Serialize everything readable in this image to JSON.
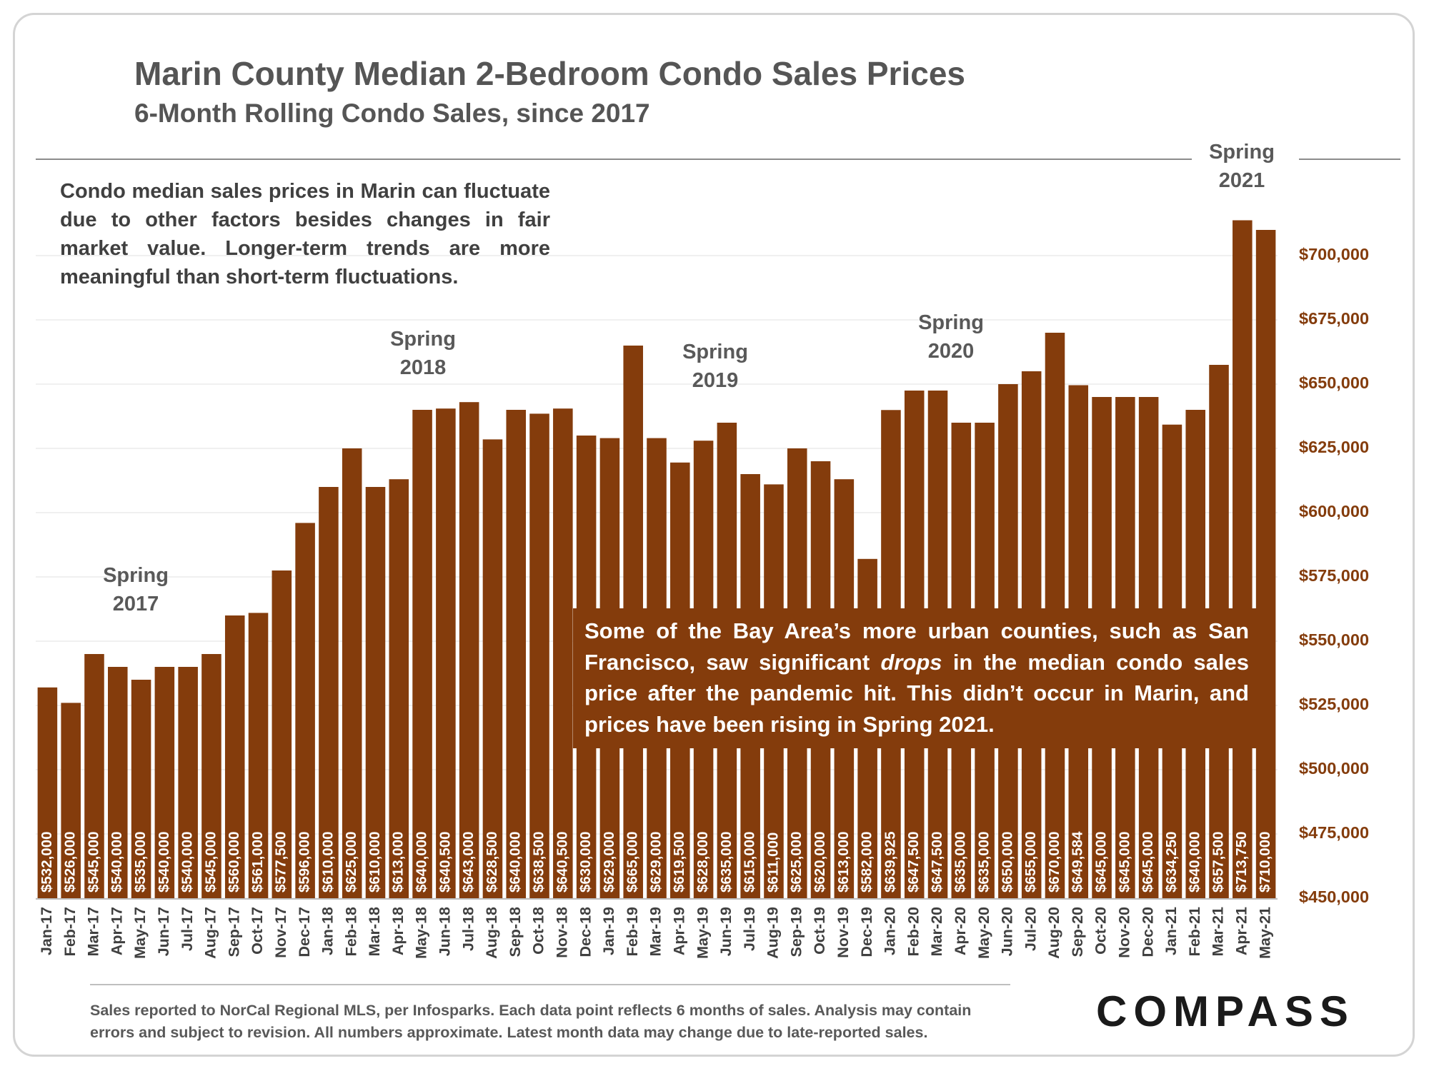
{
  "header": {
    "title": "Marin County Median 2-Bedroom Condo Sales Prices",
    "subtitle": "6-Month Rolling Condo Sales, since 2017"
  },
  "note": "Condo median sales prices in Marin can fluctuate due to other factors besides changes in fair market value. Longer-term trends are more meaningful than short-term fluctuations.",
  "callout": {
    "part1": "Some of the Bay Area’s more urban counties, such as San Francisco, saw significant ",
    "emphasis": "drops",
    "part2": " in the median condo sales price after the pandemic hit. This didn’t occur in Marin, and prices have been rising in Spring 2021."
  },
  "footer": {
    "line1": "Sales reported to NorCal Regional MLS, per Infosparks. Each data point reflects 6 months of sales. Analysis may contain",
    "line2": "errors and subject to revision. All numbers approximate. Latest month data may change due to late-reported sales."
  },
  "logo": "COMPASS",
  "colors": {
    "bar": "#843C0C",
    "axis_text": "#843C0C",
    "title": "#555555"
  },
  "chart_data": {
    "type": "bar",
    "ylim": [
      450000,
      710000
    ],
    "yticks": [
      450000,
      475000,
      500000,
      525000,
      550000,
      575000,
      600000,
      625000,
      650000,
      675000,
      700000
    ],
    "ytick_labels": [
      "$450,000",
      "$475,000",
      "$500,000",
      "$525,000",
      "$550,000",
      "$575,000",
      "$600,000",
      "$625,000",
      "$650,000",
      "$675,000",
      "$700,000"
    ],
    "categories": [
      "Jan-17",
      "Feb-17",
      "Mar-17",
      "Apr-17",
      "May-17",
      "Jun-17",
      "Jul-17",
      "Aug-17",
      "Sep-17",
      "Oct-17",
      "Nov-17",
      "Dec-17",
      "Jan-18",
      "Feb-18",
      "Mar-18",
      "Apr-18",
      "May-18",
      "Jun-18",
      "Jul-18",
      "Aug-18",
      "Sep-18",
      "Oct-18",
      "Nov-18",
      "Dec-18",
      "Jan-19",
      "Feb-19",
      "Mar-19",
      "Apr-19",
      "May-19",
      "Jun-19",
      "Jul-19",
      "Aug-19",
      "Sep-19",
      "Oct-19",
      "Nov-19",
      "Dec-19",
      "Jan-20",
      "Feb-20",
      "Mar-20",
      "Apr-20",
      "May-20",
      "Jun-20",
      "Jul-20",
      "Aug-20",
      "Sep-20",
      "Oct-20",
      "Nov-20",
      "Dec-20",
      "Jan-21",
      "Feb-21",
      "Mar-21",
      "Apr-21",
      "May-21"
    ],
    "values": [
      532000,
      526000,
      545000,
      540000,
      535000,
      540000,
      540000,
      545000,
      560000,
      561000,
      577500,
      596000,
      610000,
      625000,
      610000,
      613000,
      640000,
      640500,
      643000,
      628500,
      640000,
      638500,
      640500,
      630000,
      629000,
      665000,
      629000,
      619500,
      628000,
      635000,
      615000,
      611000,
      625000,
      620000,
      613000,
      582000,
      639925,
      647500,
      647500,
      635000,
      635000,
      650000,
      655000,
      670000,
      649584,
      645000,
      645000,
      645000,
      634250,
      640000,
      657500,
      713750,
      710000
    ],
    "value_labels": [
      "$532,000",
      "$526,000",
      "$545,000",
      "$540,000",
      "$535,000",
      "$540,000",
      "$540,000",
      "$545,000",
      "$560,000",
      "$561,000",
      "$577,500",
      "$596,000",
      "$610,000",
      "$625,000",
      "$610,000",
      "$613,000",
      "$640,000",
      "$640,500",
      "$643,000",
      "$628,500",
      "$640,000",
      "$638,500",
      "$640,500",
      "$630,000",
      "$629,000",
      "$665,000",
      "$629,000",
      "$619,500",
      "$628,000",
      "$635,000",
      "$615,000",
      "$611,000",
      "$625,000",
      "$620,000",
      "$613,000",
      "$582,000",
      "$639,925",
      "$647,500",
      "$647,500",
      "$635,000",
      "$635,000",
      "$650,000",
      "$655,000",
      "$670,000",
      "$649,584",
      "$645,000",
      "$645,000",
      "$645,000",
      "$634,250",
      "$640,000",
      "$657,500",
      "$713,750",
      "$710,000"
    ],
    "annotations": [
      {
        "line1": "Spring",
        "line2": "2017",
        "category": "Mar-17"
      },
      {
        "line1": "Spring",
        "line2": "2018",
        "category": "May-18"
      },
      {
        "line1": "Spring",
        "line2": "2019",
        "category": "May-19"
      },
      {
        "line1": "Spring",
        "line2": "2020",
        "category": "Mar-20"
      },
      {
        "line1": "Spring",
        "line2": "2021",
        "category": "Apr-21"
      }
    ],
    "grid": true,
    "legend": "none"
  }
}
